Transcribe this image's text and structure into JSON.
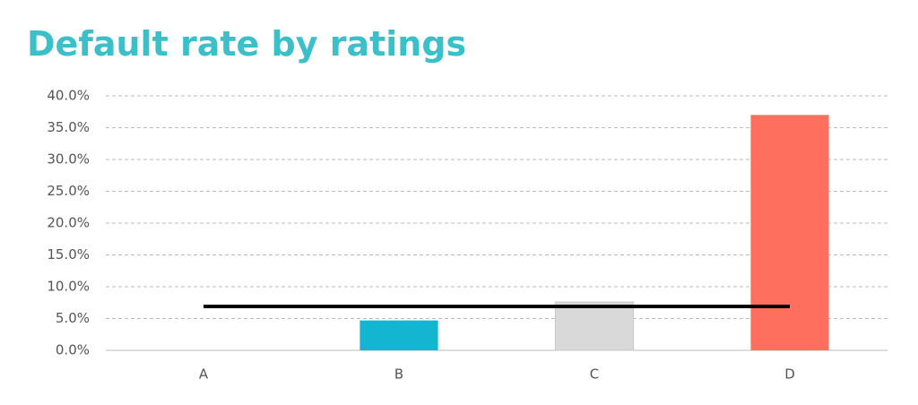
{
  "chart_data": {
    "type": "bar",
    "title": "Default rate by ratings",
    "categories": [
      "A",
      "B",
      "C",
      "D"
    ],
    "series": [
      {
        "type": "bar",
        "values": [
          0,
          4.7,
          7.6,
          37
        ],
        "colors": [
          "#13b5d1",
          "#13b5d1",
          "#d9d9d9",
          "#ff6f5e"
        ]
      },
      {
        "type": "line",
        "values": [
          6.9,
          6.9,
          6.9,
          6.9
        ],
        "color": "#000000"
      }
    ],
    "ylim": [
      0,
      40
    ],
    "yticks": [
      {
        "value": 0,
        "label": "0.0%"
      },
      {
        "value": 5,
        "label": "5.0%"
      },
      {
        "value": 10,
        "label": "10.0%"
      },
      {
        "value": 15,
        "label": "15.0%"
      },
      {
        "value": 20,
        "label": "20.0%"
      },
      {
        "value": 25,
        "label": "25.0%"
      },
      {
        "value": 30,
        "label": "30.0%"
      },
      {
        "value": 35,
        "label": "35.0%"
      },
      {
        "value": 40,
        "label": "40.0%"
      }
    ],
    "grid": true
  }
}
